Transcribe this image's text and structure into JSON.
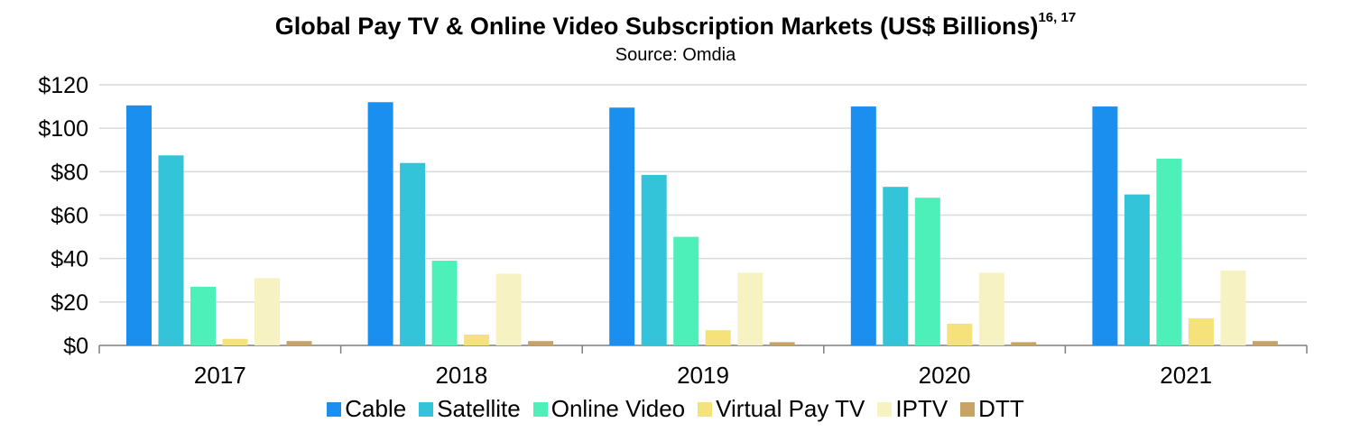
{
  "chart_data": {
    "type": "bar",
    "title": "Global Pay TV & Online Video Subscription Markets (US$ Billions)",
    "title_superscript": "16, 17",
    "subtitle": "Source: Omdia",
    "categories": [
      "2017",
      "2018",
      "2019",
      "2020",
      "2021"
    ],
    "series": [
      {
        "name": "Cable",
        "color": "#1a8ff0",
        "values": [
          110.5,
          112,
          109.5,
          110,
          110
        ]
      },
      {
        "name": "Satellite",
        "color": "#33c4d9",
        "values": [
          87.5,
          84,
          78.5,
          73,
          69.5
        ]
      },
      {
        "name": "Online Video",
        "color": "#4cf0b8",
        "values": [
          27,
          39,
          50,
          68,
          86
        ]
      },
      {
        "name": "Virtual Pay TV",
        "color": "#f5e27a",
        "values": [
          3,
          5,
          7,
          10,
          12.5
        ]
      },
      {
        "name": "IPTV",
        "color": "#f7f2c2",
        "values": [
          31,
          33,
          33.5,
          33.5,
          34.5
        ]
      },
      {
        "name": "DTT",
        "color": "#c9a266",
        "values": [
          2,
          2,
          1.5,
          1.5,
          2
        ]
      }
    ],
    "y_ticks": [
      "$0",
      "$20",
      "$40",
      "$60",
      "$80",
      "$100",
      "$120"
    ],
    "ylim": [
      0,
      120
    ],
    "grid": true,
    "legend_position": "bottom"
  }
}
